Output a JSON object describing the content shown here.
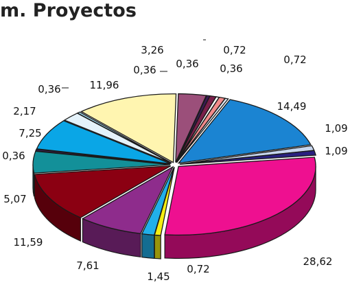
{
  "title": "m. Proyectos",
  "chart_data": {
    "type": "pie",
    "title": "m. Proyectos",
    "style": "3d-exploded",
    "slices": [
      {
        "value": 3.26,
        "label": "3,26",
        "color": "#9b4f7a"
      },
      {
        "value": 0.36,
        "label": "0,36",
        "color": "#3a1a55"
      },
      {
        "value": 0.72,
        "label": "0,72",
        "color": "#7a1f4a"
      },
      {
        "value": 0.36,
        "label": "0,36",
        "color": "#ffffff"
      },
      {
        "value": 0.72,
        "label": "0,72",
        "color": "#f28a8a"
      },
      {
        "value": 0.36,
        "label": "0,36",
        "color": "#dde8f5"
      },
      {
        "value": 14.49,
        "label": "14,49",
        "color": "#1b84d2"
      },
      {
        "value": 1.09,
        "label": "1,09",
        "color": "#c7d6ee"
      },
      {
        "value": 1.09,
        "label": "1,09",
        "color": "#2a2080"
      },
      {
        "value": 28.62,
        "label": "28,62",
        "color": "#ee1090"
      },
      {
        "value": 0.72,
        "label": "0,72",
        "color": "#f5ee12"
      },
      {
        "value": 1.45,
        "label": "1,45",
        "color": "#21b0ea"
      },
      {
        "value": 7.61,
        "label": "7,61",
        "color": "#8e2c8c"
      },
      {
        "value": 11.59,
        "label": "11,59",
        "color": "#8b0012"
      },
      {
        "value": 5.07,
        "label": "5,07",
        "color": "#139099"
      },
      {
        "value": 0.36,
        "label": "0,36",
        "color": "#3a1f5a"
      },
      {
        "value": 7.25,
        "label": "7,25",
        "color": "#0aa6e6"
      },
      {
        "value": 2.17,
        "label": "2,17",
        "color": "#e4f2fa"
      },
      {
        "value": 0.36,
        "label": "0,36",
        "color": "#9fd8ef"
      },
      {
        "value": 11.96,
        "label": "11,96",
        "color": "#fff5b0"
      }
    ]
  }
}
